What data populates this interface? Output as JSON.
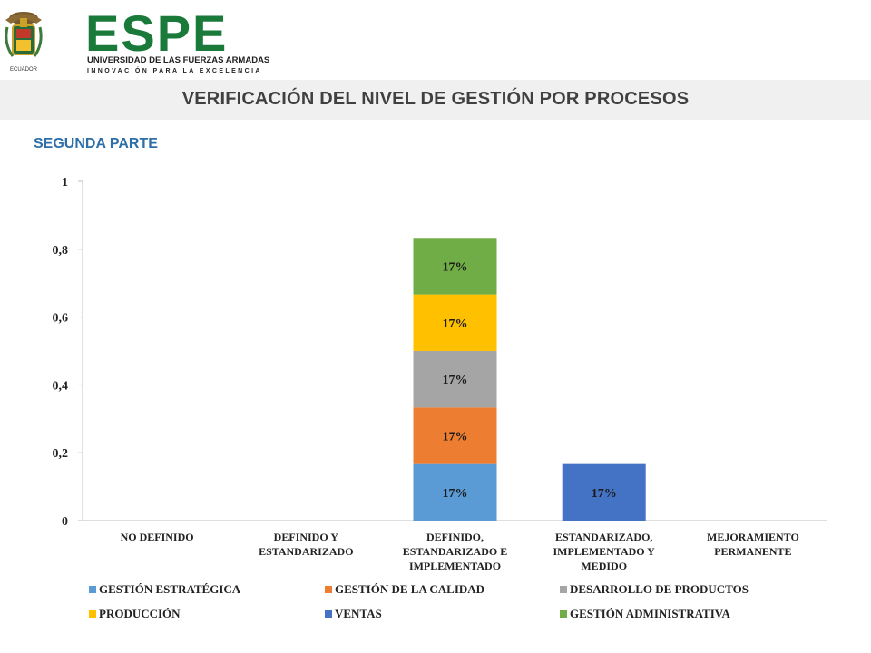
{
  "header": {
    "logo_name": "ESPE",
    "logo_subtitle": "UNIVERSIDAD DE LAS FUERZAS ARMADAS",
    "logo_tagline": "INNOVACIÓN PARA LA EXCELENCIA",
    "logo_seal_text": "ECUADOR"
  },
  "slide": {
    "title": "VERIFICACIÓN DEL NIVEL DE GESTIÓN POR PROCESOS",
    "subtitle": "SEGUNDA PARTE"
  },
  "chart_data": {
    "type": "bar",
    "stacked": true,
    "categories": [
      [
        "NO DEFINIDO"
      ],
      [
        "DEFINIDO Y",
        "ESTANDARIZADO"
      ],
      [
        "DEFINIDO,",
        "ESTANDARIZADO E",
        "IMPLEMENTADO"
      ],
      [
        "ESTANDARIZADO,",
        "IMPLEMENTADO Y",
        "MEDIDO"
      ],
      [
        "MEJORAMIENTO",
        "PERMANENTE"
      ]
    ],
    "series": [
      {
        "name": "GESTIÓN ESTRATÉGICA",
        "color": "#5b9bd5",
        "values": [
          0,
          0,
          0.1667,
          0,
          0
        ],
        "labels": [
          "",
          "",
          "17%",
          "",
          ""
        ]
      },
      {
        "name": "GESTIÓN DE LA CALIDAD",
        "color": "#ed7d31",
        "values": [
          0,
          0,
          0.1667,
          0,
          0
        ],
        "labels": [
          "",
          "",
          "17%",
          "",
          ""
        ]
      },
      {
        "name": "DESARROLLO DE PRODUCTOS",
        "color": "#a5a5a5",
        "values": [
          0,
          0,
          0.1667,
          0,
          0
        ],
        "labels": [
          "",
          "",
          "17%",
          "",
          ""
        ]
      },
      {
        "name": "PRODUCCIÓN",
        "color": "#ffc000",
        "values": [
          0,
          0,
          0.1667,
          0,
          0
        ],
        "labels": [
          "",
          "",
          "17%",
          "",
          ""
        ]
      },
      {
        "name": "VENTAS",
        "color": "#4472c4",
        "values": [
          0,
          0,
          0,
          0.1667,
          0
        ],
        "labels": [
          "",
          "",
          "",
          "17%",
          ""
        ]
      },
      {
        "name": "GESTIÓN ADMINISTRATIVA",
        "color": "#70ad47",
        "values": [
          0,
          0,
          0.1667,
          0,
          0
        ],
        "labels": [
          "",
          "",
          "17%",
          "",
          ""
        ]
      }
    ],
    "yticks": [
      "0",
      "0,2",
      "0,4",
      "0,6",
      "0,8",
      "1"
    ],
    "ylim": [
      0,
      1
    ],
    "grid": false,
    "legend_position": "bottom"
  }
}
